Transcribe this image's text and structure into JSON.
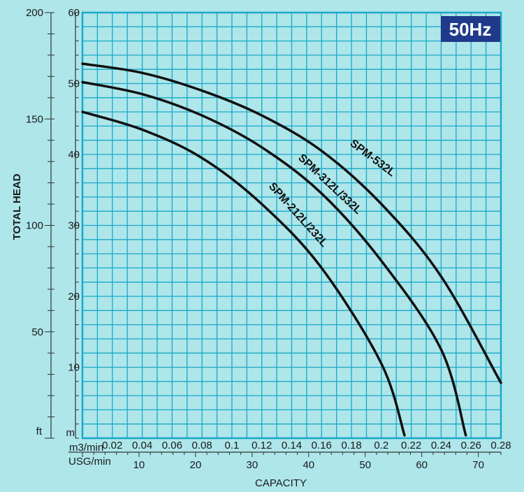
{
  "badge": "50Hz",
  "colors": {
    "background": "#aee6ea",
    "plot_fill": "#aee6ea",
    "grid": "#19a9c8",
    "curve": "#111111",
    "badge_bg": "#1f3a8a",
    "badge_text": "#ffffff"
  },
  "chart_data": {
    "type": "line",
    "ylabel": "TOTAL HEAD",
    "xlabel": "CAPACITY",
    "grid": true,
    "y_axis_m": {
      "unit": "m",
      "range": [
        0,
        60
      ],
      "ticks": [
        10,
        20,
        30,
        40,
        50,
        60
      ]
    },
    "y_axis_ft": {
      "unit": "ft",
      "range": [
        0,
        200
      ],
      "ticks": [
        50,
        100,
        150,
        200
      ]
    },
    "x_axis_m3": {
      "unit": "m3/min",
      "range": [
        0,
        0.28
      ],
      "ticks": [
        "0.02",
        "0.04",
        "0.06",
        "0.08",
        "0.1",
        "0.12",
        "0.14",
        "0.16",
        "0.18",
        "0.2",
        "0.22",
        "0.24",
        "0.26",
        "0.28"
      ]
    },
    "x_axis_usg": {
      "unit": "USG/min",
      "range": [
        0,
        74
      ],
      "ticks": [
        10,
        20,
        30,
        40,
        50,
        60,
        70
      ]
    },
    "series": [
      {
        "name": "SPM-532L",
        "points": [
          [
            0,
            52.8
          ],
          [
            0.04,
            51.5
          ],
          [
            0.08,
            49
          ],
          [
            0.12,
            45.5
          ],
          [
            0.16,
            40.5
          ],
          [
            0.2,
            33
          ],
          [
            0.24,
            22.8
          ],
          [
            0.28,
            7.8
          ]
        ]
      },
      {
        "name": "SPM-312L/332L",
        "points": [
          [
            0,
            50.2
          ],
          [
            0.04,
            48.5
          ],
          [
            0.08,
            45.5
          ],
          [
            0.12,
            41
          ],
          [
            0.16,
            34.5
          ],
          [
            0.2,
            25
          ],
          [
            0.24,
            12.5
          ],
          [
            0.2565,
            0.4
          ]
        ]
      },
      {
        "name": "SPM-212L/232L",
        "points": [
          [
            0,
            46
          ],
          [
            0.04,
            43.5
          ],
          [
            0.08,
            39.5
          ],
          [
            0.12,
            33
          ],
          [
            0.16,
            24
          ],
          [
            0.2,
            10.5
          ],
          [
            0.2155,
            0.4
          ]
        ]
      }
    ]
  }
}
